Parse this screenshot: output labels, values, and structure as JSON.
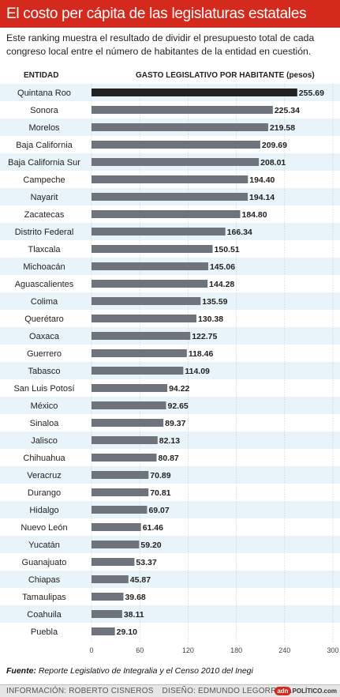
{
  "header": {
    "title": "El costo per cápita de las legislaturas estatales",
    "subtitle": "Este ranking muestra el resultado de dividir el presupuesto total de cada congreso local entre el número de habitantes de la entidad en cuestión."
  },
  "columns": {
    "entity": "ENTIDAD",
    "value": "GASTO LEGISLATIVO POR HABITANTE (pesos)"
  },
  "colors": {
    "title_bar": "#d42a1e",
    "bar_highlight": "#222222",
    "bar": "#6f737b",
    "row_alt": "#e9f3fa",
    "row": "#ffffff"
  },
  "chart_data": {
    "type": "bar",
    "orientation": "horizontal",
    "categories": [
      "Quintana Roo",
      "Sonora",
      "Morelos",
      "Baja California",
      "Baja California Sur",
      "Campeche",
      "Nayarit",
      "Zacatecas",
      "Distrito Federal",
      "Tlaxcala",
      "Michoacán",
      "Aguascalientes",
      "Colima",
      "Querétaro",
      "Oaxaca",
      "Guerrero",
      "Tabasco",
      "San Luis Potosí",
      "México",
      "Sinaloa",
      "Jalisco",
      "Chihuahua",
      "Veracruz",
      "Durango",
      "Hidalgo",
      "Nuevo León",
      "Yucatán",
      "Guanajuato",
      "Chiapas",
      "Tamaulipas",
      "Coahuila",
      "Puebla"
    ],
    "values": [
      255.69,
      225.34,
      219.58,
      209.69,
      208.01,
      194.4,
      194.14,
      184.8,
      166.34,
      150.51,
      145.06,
      144.28,
      135.59,
      130.38,
      122.75,
      118.46,
      114.09,
      94.22,
      92.65,
      89.37,
      82.13,
      80.87,
      70.89,
      70.81,
      69.07,
      61.46,
      59.2,
      53.37,
      45.87,
      39.68,
      38.11,
      29.1
    ],
    "value_labels": [
      "255.69",
      "225.34",
      "219.58",
      "209.69",
      "208.01",
      "194.40",
      "194.14",
      "184.80",
      "166.34",
      "150.51",
      "145.06",
      "144.28",
      "135.59",
      "130.38",
      "122.75",
      "118.46",
      "114.09",
      "94.22",
      "92.65",
      "89.37",
      "82.13",
      "80.87",
      "70.89",
      "70.81",
      "69.07",
      "61.46",
      "59.20",
      "53.37",
      "45.87",
      "39.68",
      "38.11",
      "29.10"
    ],
    "xlim": [
      0,
      300
    ],
    "x_ticks": [
      "0",
      "60",
      "120",
      "180",
      "240",
      "300"
    ],
    "grid": true,
    "legend": "none"
  },
  "source": {
    "label": "Fuente:",
    "text": "Reporte Legislativo de Integralia y el Censo 2010 del Inegi"
  },
  "footer": {
    "info": "INFORMACIÓN: ROBERTO CISNEROS",
    "design": "DISEÑO: EDMUNDO LEGORRETA",
    "logo_adn": "adn",
    "logo_politico": "POLÍTICO.com"
  }
}
